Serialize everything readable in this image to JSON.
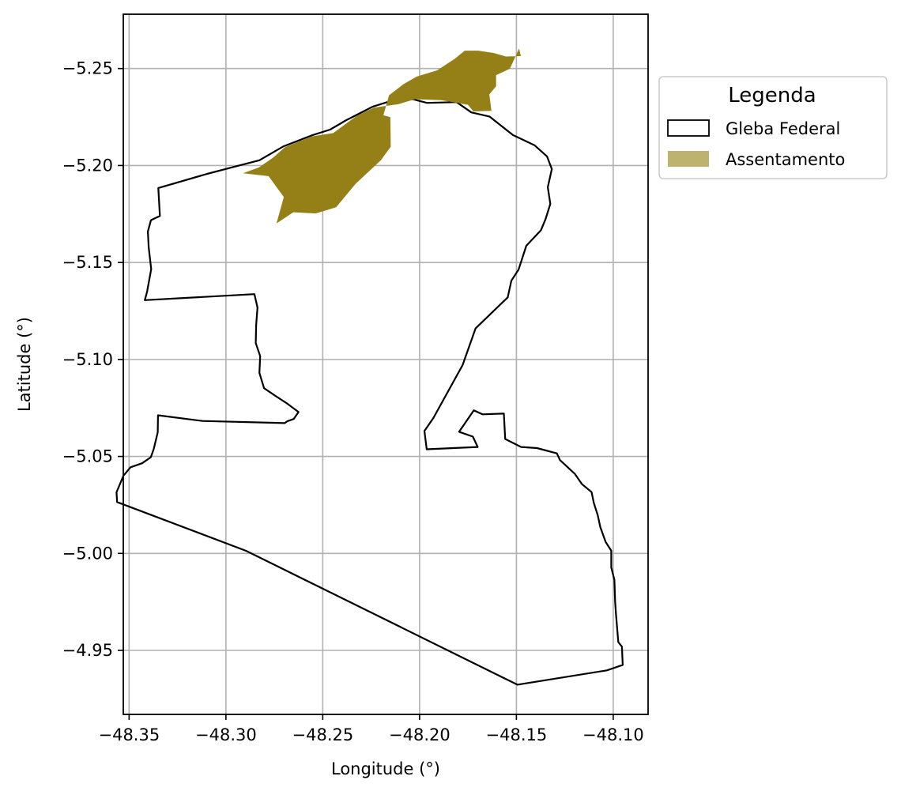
{
  "chart_data": {
    "type": "map",
    "xlabel": "Longitude (°)",
    "ylabel": "Latitude (°)",
    "xlim": [
      -48.353,
      -48.082
    ],
    "ylim": [
      -5.278,
      -4.917
    ],
    "grid": true,
    "x_ticks": [
      -48.35,
      -48.3,
      -48.25,
      -48.2,
      -48.15,
      -48.1
    ],
    "x_tick_labels": [
      "−48.35",
      "−48.30",
      "−48.25",
      "−48.20",
      "−48.15",
      "−48.10"
    ],
    "y_ticks": [
      -4.95,
      -5.0,
      -5.05,
      -5.1,
      -5.15,
      -5.2,
      -5.25
    ],
    "y_tick_labels": [
      "−4.95",
      "−5.00",
      "−5.05",
      "−5.10",
      "−5.15",
      "−5.20",
      "−5.25"
    ],
    "legend": {
      "title": "Legenda",
      "placement": "outside-upper-right",
      "entries": [
        {
          "label": "Gleba Federal",
          "style": "outline",
          "color": "#000000"
        },
        {
          "label": "Assentamento",
          "style": "fill",
          "color": "#bfb26f"
        }
      ]
    },
    "series": [
      {
        "name": "Gleba Federal",
        "kind": "polygon-outline",
        "stroke": "#000000",
        "coords": [
          [
            -48.1495,
            -4.9323
          ],
          [
            -48.1033,
            -4.9397
          ],
          [
            -48.0951,
            -4.9425
          ],
          [
            -48.0955,
            -4.9519
          ],
          [
            -48.0974,
            -4.9543
          ],
          [
            -48.0986,
            -4.9691
          ],
          [
            -48.099,
            -4.9752
          ],
          [
            -48.0994,
            -4.9863
          ],
          [
            -48.101,
            -4.9928
          ],
          [
            -48.101,
            -5.0014
          ],
          [
            -48.1039,
            -5.0059
          ],
          [
            -48.1067,
            -5.0136
          ],
          [
            -48.108,
            -5.0197
          ],
          [
            -48.11,
            -5.0259
          ],
          [
            -48.1112,
            -5.0316
          ],
          [
            -48.1161,
            -5.0357
          ],
          [
            -48.1198,
            -5.041
          ],
          [
            -48.1275,
            -5.0481
          ],
          [
            -48.1291,
            -5.0516
          ],
          [
            -48.1394,
            -5.0543
          ],
          [
            -48.1476,
            -5.0549
          ],
          [
            -48.1558,
            -5.059
          ],
          [
            -48.1565,
            -5.0721
          ],
          [
            -48.1675,
            -5.0717
          ],
          [
            -48.172,
            -5.0738
          ],
          [
            -48.1796,
            -5.0627
          ],
          [
            -48.1725,
            -5.0602
          ],
          [
            -48.17,
            -5.0549
          ],
          [
            -48.1963,
            -5.0537
          ],
          [
            -48.1975,
            -5.0631
          ],
          [
            -48.1929,
            -5.0698
          ],
          [
            -48.1778,
            -5.0971
          ],
          [
            -48.1711,
            -5.116
          ],
          [
            -48.1545,
            -5.132
          ],
          [
            -48.1526,
            -5.1406
          ],
          [
            -48.1489,
            -5.1463
          ],
          [
            -48.1449,
            -5.1586
          ],
          [
            -48.1373,
            -5.1667
          ],
          [
            -48.1349,
            -5.1725
          ],
          [
            -48.1325,
            -5.1802
          ],
          [
            -48.1338,
            -5.1888
          ],
          [
            -48.1317,
            -5.1982
          ],
          [
            -48.1342,
            -5.2047
          ],
          [
            -48.1407,
            -5.2105
          ],
          [
            -48.1518,
            -5.2157
          ],
          [
            -48.1638,
            -5.2252
          ],
          [
            -48.1733,
            -5.2274
          ],
          [
            -48.1809,
            -5.2327
          ],
          [
            -48.1962,
            -5.2323
          ],
          [
            -48.2032,
            -5.2341
          ],
          [
            -48.2121,
            -5.2341
          ],
          [
            -48.2243,
            -5.2303
          ],
          [
            -48.2382,
            -5.2232
          ],
          [
            -48.2462,
            -5.2185
          ],
          [
            -48.2552,
            -5.2157
          ],
          [
            -48.2702,
            -5.2099
          ],
          [
            -48.2827,
            -5.2027
          ],
          [
            -48.2981,
            -5.1987
          ],
          [
            -48.3097,
            -5.1957
          ],
          [
            -48.3349,
            -5.1884
          ],
          [
            -48.3341,
            -5.174
          ],
          [
            -48.3387,
            -5.1718
          ],
          [
            -48.3403,
            -5.166
          ],
          [
            -48.3399,
            -5.1579
          ],
          [
            -48.3386,
            -5.1466
          ],
          [
            -48.3407,
            -5.1349
          ],
          [
            -48.3419,
            -5.1306
          ],
          [
            -48.2853,
            -5.1337
          ],
          [
            -48.2837,
            -5.1268
          ],
          [
            -48.2844,
            -5.1177
          ],
          [
            -48.2846,
            -5.1084
          ],
          [
            -48.2823,
            -5.1017
          ],
          [
            -48.2827,
            -5.0931
          ],
          [
            -48.2803,
            -5.0852
          ],
          [
            -48.2741,
            -5.081
          ],
          [
            -48.2689,
            -5.0776
          ],
          [
            -48.2625,
            -5.0729
          ],
          [
            -48.265,
            -5.0693
          ],
          [
            -48.2682,
            -5.0682
          ],
          [
            -48.2696,
            -5.0672
          ],
          [
            -48.3121,
            -5.0683
          ],
          [
            -48.3351,
            -5.0712
          ],
          [
            -48.3352,
            -5.0625
          ],
          [
            -48.3373,
            -5.0538
          ],
          [
            -48.3388,
            -5.0496
          ],
          [
            -48.3433,
            -5.0465
          ],
          [
            -48.3493,
            -5.0444
          ],
          [
            -48.3529,
            -5.0401
          ],
          [
            -48.3565,
            -5.0315
          ],
          [
            -48.3562,
            -5.0265
          ],
          [
            -48.2895,
            -5.0013
          ],
          [
            -48.1495,
            -4.9323
          ]
        ]
      },
      {
        "name": "Assentamento",
        "kind": "polygon-fill",
        "fill": "#958017",
        "coords": [
          [
            -48.2739,
            -5.1701
          ],
          [
            -48.2652,
            -5.1759
          ],
          [
            -48.2536,
            -5.1753
          ],
          [
            -48.2431,
            -5.1785
          ],
          [
            -48.2331,
            -5.1905
          ],
          [
            -48.22,
            -5.2027
          ],
          [
            -48.2149,
            -5.2097
          ],
          [
            -48.2151,
            -5.2249
          ],
          [
            -48.2187,
            -5.2259
          ],
          [
            -48.2158,
            -5.2362
          ],
          [
            -48.2085,
            -5.2418
          ],
          [
            -48.2016,
            -5.2458
          ],
          [
            -48.1908,
            -5.2491
          ],
          [
            -48.1818,
            -5.2551
          ],
          [
            -48.1767,
            -5.2592
          ],
          [
            -48.1696,
            -5.2592
          ],
          [
            -48.1616,
            -5.258
          ],
          [
            -48.1555,
            -5.2562
          ],
          [
            -48.1477,
            -5.2564
          ],
          [
            -48.1486,
            -5.2604
          ],
          [
            -48.1534,
            -5.2499
          ],
          [
            -48.1605,
            -5.2466
          ],
          [
            -48.1605,
            -5.2409
          ],
          [
            -48.164,
            -5.2367
          ],
          [
            -48.1629,
            -5.2282
          ],
          [
            -48.1722,
            -5.2279
          ],
          [
            -48.175,
            -5.2313
          ],
          [
            -48.1889,
            -5.2337
          ],
          [
            -48.2023,
            -5.2342
          ],
          [
            -48.211,
            -5.2316
          ],
          [
            -48.2235,
            -5.2299
          ],
          [
            -48.2322,
            -5.2258
          ],
          [
            -48.2446,
            -5.2167
          ],
          [
            -48.2557,
            -5.215
          ],
          [
            -48.2695,
            -5.2095
          ],
          [
            -48.2757,
            -5.204
          ],
          [
            -48.283,
            -5.199
          ],
          [
            -48.2912,
            -5.196
          ],
          [
            -48.278,
            -5.1945
          ],
          [
            -48.2701,
            -5.1837
          ],
          [
            -48.2739,
            -5.1701
          ]
        ]
      }
    ]
  }
}
